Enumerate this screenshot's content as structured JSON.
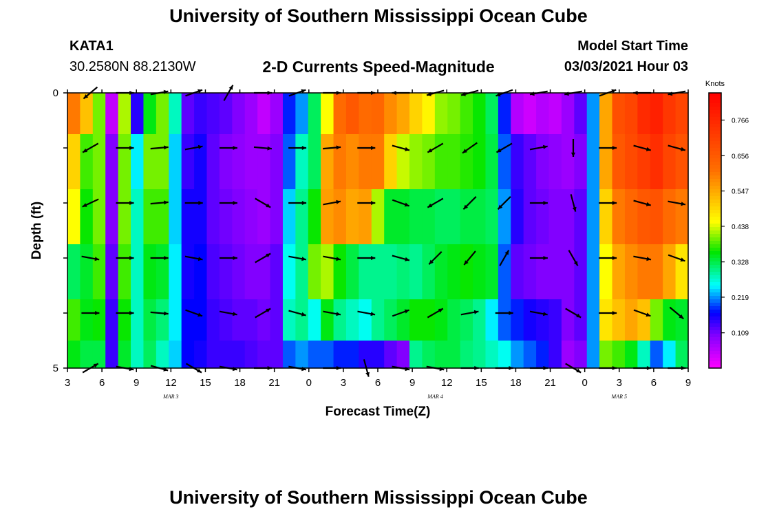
{
  "header": {
    "title": "University of Southern Mississippi Ocean Cube",
    "station_id": "KATA1",
    "station_coords": "30.2580N 88.2130W",
    "chart_title": "2-D Currents Speed-Magnitude",
    "model_label": "Model Start Time",
    "model_time": "03/03/2021 Hour 03"
  },
  "footer": {
    "title": "University of Southern Mississippi Ocean Cube"
  },
  "chart_data": {
    "type": "heatmap",
    "title": "2-D Currents Speed-Magnitude",
    "xlabel": "Forecast Time(Z)",
    "ylabel": "Depth (ft)",
    "x_tick_labels": [
      "3",
      "6",
      "9",
      "12",
      "15",
      "18",
      "21",
      "0",
      "3",
      "6",
      "9",
      "12",
      "15",
      "18",
      "21",
      "0",
      "3",
      "6",
      "9"
    ],
    "x_day_labels": [
      {
        "label": "MAR 3",
        "hour_index": 9
      },
      {
        "label": "MAR 4",
        "hour_index": 32
      },
      {
        "label": "MAR 5",
        "hour_index": 48
      }
    ],
    "x_range_hours": [
      0,
      54
    ],
    "y_tick_labels": [
      "0",
      "",
      "",
      "",
      "",
      "5"
    ],
    "depth_range_ft": [
      0,
      5
    ],
    "legend_title": "Knots",
    "legend_ticks": [
      "0.766",
      "0.656",
      "0.547",
      "0.438",
      "0.328",
      "0.219",
      "0.109"
    ],
    "legend_tick_values": [
      0.766,
      0.656,
      0.547,
      0.438,
      0.328,
      0.219,
      0.109
    ],
    "legend_range": [
      0.0,
      0.85
    ],
    "speed_rows_depth_ft": [
      0.25,
      1.25,
      2.25,
      3.25,
      4.25,
      4.75
    ],
    "speed_knots": [
      [
        0.6,
        0.52,
        0.4,
        0.05,
        0.42,
        0.15,
        0.35,
        0.4,
        0.28,
        0.12,
        0.14,
        0.13,
        0.12,
        0.1,
        0.08,
        0.05,
        0.08,
        0.18,
        0.22,
        0.32,
        0.45,
        0.62,
        0.66,
        0.62,
        0.63,
        0.58,
        0.55,
        0.5,
        0.46,
        0.41,
        0.4,
        0.38,
        0.36,
        0.32,
        0.18,
        0.06,
        0.04,
        0.06,
        0.05,
        0.08,
        0.12,
        0.22,
        0.55,
        0.68,
        0.7,
        0.76,
        0.78,
        0.73,
        0.7
      ],
      [
        0.5,
        0.38,
        0.4,
        0.1,
        0.4,
        0.25,
        0.4,
        0.4,
        0.24,
        0.14,
        0.16,
        0.12,
        0.1,
        0.09,
        0.08,
        0.08,
        0.1,
        0.2,
        0.28,
        0.32,
        0.55,
        0.6,
        0.58,
        0.6,
        0.6,
        0.5,
        0.43,
        0.41,
        0.4,
        0.38,
        0.38,
        0.37,
        0.36,
        0.33,
        0.2,
        0.14,
        0.12,
        0.1,
        0.09,
        0.08,
        0.1,
        0.22,
        0.55,
        0.66,
        0.69,
        0.72,
        0.75,
        0.7,
        0.67
      ],
      [
        0.45,
        0.36,
        0.4,
        0.1,
        0.4,
        0.28,
        0.38,
        0.38,
        0.24,
        0.16,
        0.16,
        0.12,
        0.11,
        0.1,
        0.09,
        0.08,
        0.1,
        0.24,
        0.3,
        0.36,
        0.56,
        0.58,
        0.55,
        0.56,
        0.42,
        0.34,
        0.34,
        0.33,
        0.33,
        0.32,
        0.32,
        0.33,
        0.33,
        0.32,
        0.22,
        0.15,
        0.12,
        0.11,
        0.1,
        0.1,
        0.12,
        0.22,
        0.5,
        0.6,
        0.63,
        0.66,
        0.67,
        0.62,
        0.6
      ],
      [
        0.32,
        0.34,
        0.38,
        0.12,
        0.38,
        0.28,
        0.35,
        0.34,
        0.25,
        0.16,
        0.17,
        0.13,
        0.12,
        0.11,
        0.1,
        0.1,
        0.12,
        0.26,
        0.3,
        0.4,
        0.42,
        0.36,
        0.33,
        0.3,
        0.3,
        0.3,
        0.31,
        0.3,
        0.32,
        0.34,
        0.35,
        0.36,
        0.35,
        0.34,
        0.2,
        0.12,
        0.11,
        0.1,
        0.1,
        0.1,
        0.12,
        0.22,
        0.45,
        0.55,
        0.58,
        0.6,
        0.6,
        0.55,
        0.48
      ],
      [
        0.38,
        0.35,
        0.36,
        0.14,
        0.36,
        0.28,
        0.33,
        0.31,
        0.25,
        0.17,
        0.17,
        0.14,
        0.13,
        0.12,
        0.12,
        0.11,
        0.12,
        0.28,
        0.3,
        0.26,
        0.35,
        0.3,
        0.28,
        0.26,
        0.3,
        0.32,
        0.34,
        0.36,
        0.36,
        0.35,
        0.33,
        0.32,
        0.3,
        0.25,
        0.2,
        0.18,
        0.16,
        0.15,
        0.14,
        0.1,
        0.12,
        0.22,
        0.48,
        0.52,
        0.55,
        0.52,
        0.4,
        0.35,
        0.34
      ],
      [
        0.35,
        0.33,
        0.33,
        0.14,
        0.34,
        0.28,
        0.32,
        0.28,
        0.24,
        0.17,
        0.16,
        0.14,
        0.14,
        0.14,
        0.13,
        0.12,
        0.12,
        0.2,
        0.22,
        0.2,
        0.2,
        0.18,
        0.18,
        0.15,
        0.15,
        0.12,
        0.1,
        0.3,
        0.32,
        0.33,
        0.33,
        0.31,
        0.3,
        0.28,
        0.26,
        0.22,
        0.2,
        0.18,
        0.14,
        0.08,
        0.1,
        0.22,
        0.4,
        0.38,
        0.35,
        0.28,
        0.2,
        0.25,
        0.32
      ]
    ],
    "vector_rows_depth_ft": [
      0,
      1,
      2,
      3,
      4,
      5
    ],
    "vector_times_hours": [
      2,
      5,
      8,
      11,
      14,
      17,
      20,
      23,
      26,
      29,
      32,
      35,
      38,
      41,
      44,
      47,
      50,
      53
    ],
    "vector_angles_deg": [
      [
        -140,
        0,
        10,
        20,
        60,
        0,
        20,
        0,
        0,
        180,
        -165,
        -165,
        -160,
        -170,
        -170,
        20,
        180,
        -170
      ],
      [
        -150,
        0,
        5,
        10,
        0,
        -5,
        0,
        5,
        0,
        -15,
        -150,
        -145,
        -150,
        10,
        -90,
        0,
        -15,
        -15
      ],
      [
        -155,
        0,
        5,
        0,
        0,
        -30,
        0,
        10,
        0,
        -20,
        -150,
        -135,
        -135,
        0,
        -75,
        0,
        -15,
        -10
      ],
      [
        -10,
        0,
        0,
        -10,
        0,
        30,
        -10,
        -10,
        0,
        -15,
        -135,
        -130,
        60,
        0,
        -60,
        0,
        -10,
        -20
      ],
      [
        0,
        0,
        -5,
        -20,
        -10,
        30,
        -15,
        -10,
        -10,
        20,
        30,
        10,
        0,
        -10,
        -30,
        0,
        -20,
        -40
      ],
      [
        30,
        -10,
        -15,
        -30,
        -10,
        0,
        -10,
        0,
        -75,
        -10,
        -10,
        0,
        0,
        0,
        -30,
        0,
        0,
        0
      ]
    ]
  }
}
